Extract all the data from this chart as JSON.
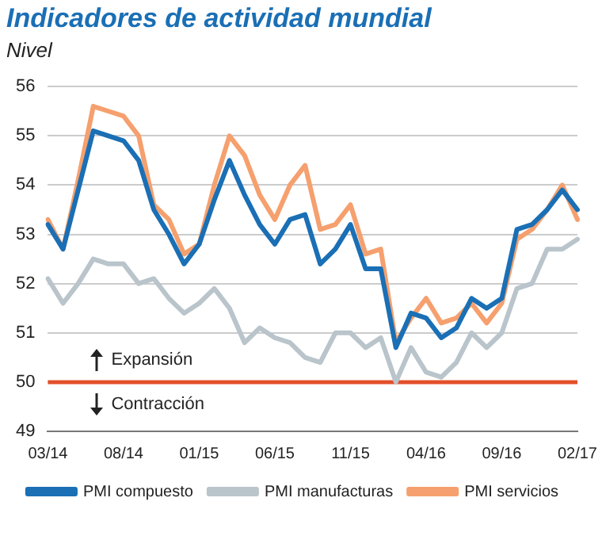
{
  "chart_data": {
    "type": "line",
    "title": "Indicadores de actividad mundial",
    "ylabel": "Nivel",
    "categories": [
      "03/14",
      null,
      null,
      null,
      null,
      "08/14",
      null,
      null,
      null,
      null,
      "01/15",
      null,
      null,
      null,
      null,
      "06/15",
      null,
      null,
      null,
      null,
      "11/15",
      null,
      null,
      null,
      null,
      "04/16",
      null,
      null,
      null,
      null,
      "09/16",
      null,
      null,
      null,
      null,
      "02/17"
    ],
    "series": [
      {
        "name": "PMI compuesto",
        "color": "#1a6fb5",
        "values": [
          53.2,
          52.7,
          53.9,
          55.1,
          55.0,
          54.9,
          54.5,
          53.5,
          53.0,
          52.4,
          52.8,
          53.7,
          54.5,
          53.8,
          53.2,
          52.8,
          53.3,
          53.4,
          52.4,
          52.7,
          53.2,
          52.3,
          52.3,
          50.7,
          51.4,
          51.3,
          50.9,
          51.1,
          51.7,
          51.5,
          51.7,
          53.1,
          53.2,
          53.5,
          53.9,
          53.5
        ]
      },
      {
        "name": "PMI manufacturas",
        "color": "#b9c4cb",
        "values": [
          52.1,
          51.6,
          52.0,
          52.5,
          52.4,
          52.4,
          52.0,
          52.1,
          51.7,
          51.4,
          51.6,
          51.9,
          51.5,
          50.8,
          51.1,
          50.9,
          50.8,
          50.5,
          50.4,
          51.0,
          51.0,
          50.7,
          50.9,
          50.0,
          50.7,
          50.2,
          50.1,
          50.4,
          51.0,
          50.7,
          51.0,
          51.9,
          52.0,
          52.7,
          52.7,
          52.9
        ]
      },
      {
        "name": "PMI servicios",
        "color": "#f5a06e",
        "values": [
          53.3,
          52.7,
          54.1,
          55.6,
          55.5,
          55.4,
          55.0,
          53.6,
          53.3,
          52.6,
          52.8,
          54.0,
          55.0,
          54.6,
          53.8,
          53.3,
          54.0,
          54.4,
          53.1,
          53.2,
          53.6,
          52.6,
          52.7,
          50.8,
          51.3,
          51.7,
          51.2,
          51.3,
          51.6,
          51.2,
          51.6,
          52.9,
          53.1,
          53.5,
          54.0,
          53.3
        ]
      }
    ],
    "ylim": [
      49,
      56
    ],
    "yticks": [
      49,
      50,
      51,
      52,
      53,
      54,
      55,
      56
    ],
    "grid": "y",
    "legend": "bottom",
    "marker": "none",
    "line_style": "solid",
    "ref_lines": [
      {
        "axis": "y",
        "value": 50,
        "color": "#e2502a"
      }
    ],
    "annotations": [
      "Expansión",
      "Contracción"
    ]
  }
}
